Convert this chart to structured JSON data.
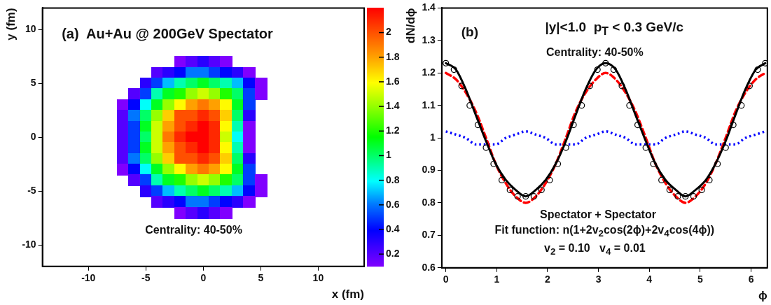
{
  "chart_data": [
    {
      "type": "heatmap",
      "xlabel": "x (fm)",
      "ylabel": "y (fm)",
      "annotations": [
        "(a)  Au+Au @ 200GeV Spectator",
        "Centrality: 40-50%"
      ],
      "x": [
        -7,
        -6,
        -5,
        -4,
        -3,
        -2,
        -1,
        0,
        1,
        2,
        3,
        4,
        5
      ],
      "y": [
        7,
        6,
        5,
        4,
        3,
        2,
        1,
        0,
        -1,
        -2,
        -3,
        -4,
        -5,
        -6,
        -7
      ],
      "cells": [
        [
          null,
          null,
          null,
          null,
          null,
          0.1,
          0.2,
          0.3,
          0.2,
          0.1,
          null,
          null,
          null
        ],
        [
          null,
          null,
          null,
          0.2,
          0.3,
          0.4,
          0.6,
          0.6,
          0.5,
          0.4,
          0.3,
          0.1,
          null
        ],
        [
          null,
          null,
          0.3,
          0.5,
          0.7,
          0.9,
          1.0,
          1.1,
          1.0,
          0.9,
          0.7,
          0.4,
          0.1
        ],
        [
          null,
          0.2,
          0.5,
          0.9,
          1.1,
          1.2,
          1.4,
          1.5,
          1.4,
          1.2,
          1.0,
          0.5,
          0.1
        ],
        [
          0.1,
          0.4,
          0.8,
          1.1,
          1.4,
          1.6,
          1.8,
          1.9,
          1.8,
          1.6,
          1.1,
          0.5,
          null
        ],
        [
          0.2,
          0.6,
          1.0,
          1.4,
          1.7,
          2.0,
          2.0,
          2.1,
          2.0,
          1.7,
          1.0,
          0.3,
          null
        ],
        [
          0.2,
          0.5,
          1.1,
          1.5,
          1.8,
          2.0,
          2.1,
          2.2,
          2.1,
          1.6,
          0.9,
          0.1,
          null
        ],
        [
          0.2,
          0.5,
          1.0,
          1.5,
          1.9,
          2.1,
          2.2,
          2.2,
          2.1,
          1.5,
          0.8,
          0.1,
          null
        ],
        [
          0.2,
          0.5,
          1.1,
          1.5,
          1.8,
          2.0,
          2.1,
          2.2,
          2.1,
          1.6,
          0.9,
          0.1,
          null
        ],
        [
          0.2,
          0.6,
          1.0,
          1.4,
          1.7,
          2.0,
          2.0,
          2.1,
          2.0,
          1.7,
          1.0,
          0.3,
          null
        ],
        [
          0.1,
          0.4,
          0.8,
          1.1,
          1.4,
          1.6,
          1.8,
          1.9,
          1.8,
          1.6,
          1.1,
          0.5,
          null
        ],
        [
          null,
          0.2,
          0.5,
          0.9,
          1.1,
          1.2,
          1.4,
          1.5,
          1.4,
          1.2,
          1.0,
          0.5,
          0.1
        ],
        [
          null,
          null,
          0.3,
          0.5,
          0.7,
          0.9,
          1.0,
          1.1,
          1.0,
          0.9,
          0.7,
          0.4,
          0.1
        ],
        [
          null,
          null,
          null,
          0.2,
          0.3,
          0.4,
          0.6,
          0.6,
          0.5,
          0.4,
          0.3,
          0.1,
          null
        ],
        [
          null,
          null,
          null,
          null,
          null,
          0.1,
          0.2,
          0.3,
          0.2,
          0.1,
          null,
          null,
          null
        ]
      ],
      "clim": [
        0.1,
        2.2
      ],
      "cticks": [
        0.2,
        0.4,
        0.6,
        0.8,
        1,
        1.2,
        1.4,
        1.6,
        1.8,
        2
      ],
      "xlim": [
        -14,
        14
      ],
      "ylim": [
        -12,
        12
      ],
      "xticks": [
        -10,
        -5,
        0,
        5,
        10
      ],
      "yticks": [
        -10,
        -5,
        0,
        5,
        10
      ]
    },
    {
      "type": "line",
      "title": "|y|<1.0  p$_{T}$ < 0.3 GeV/c",
      "xlabel": "ϕ",
      "ylabel": "dN/dϕ",
      "annotations": [
        "(b)",
        "Centrality: 40-50%",
        "Spectator + Spectator",
        "Fit function: n(1+2v$_{2}$cos(2ϕ)+2v$_{4}$cos(4ϕ))",
        "v$_{2}$ = 0.10   v$_{4}$ = 0.01"
      ],
      "xlim": [
        -0.08,
        6.32
      ],
      "ylim": [
        0.6,
        1.4
      ],
      "xticks": [
        0,
        1,
        2,
        3,
        4,
        5,
        6
      ],
      "yticks": [
        0.6,
        0.7,
        0.8,
        0.9,
        1,
        1.1,
        1.2,
        1.3,
        1.4
      ],
      "series": [
        {
          "type": "line",
          "color": "#0000ff",
          "line_style": "dotted",
          "x": [
            0,
            0.2,
            0.39,
            0.59,
            0.79,
            0.98,
            1.18,
            1.37,
            1.57,
            1.77,
            1.96,
            2.16,
            2.36,
            2.55,
            2.75,
            2.95,
            3.14,
            3.34,
            3.53,
            3.73,
            3.93,
            4.12,
            4.32,
            4.52,
            4.71,
            4.91,
            5.11,
            5.3,
            5.5,
            5.69,
            5.89,
            6.09,
            6.28
          ],
          "values": [
            1.02,
            1.01,
            1.0,
            0.98,
            0.98,
            0.98,
            1.0,
            1.01,
            1.02,
            1.01,
            1.0,
            0.98,
            0.98,
            0.98,
            1.0,
            1.01,
            1.02,
            1.01,
            1.0,
            0.98,
            0.98,
            0.98,
            1.0,
            1.01,
            1.02,
            1.01,
            1.0,
            0.98,
            0.98,
            0.98,
            1.0,
            1.01,
            1.02
          ]
        },
        {
          "type": "line",
          "color": "#ff0000",
          "line_style": "dashed",
          "x": [
            0,
            0.2,
            0.39,
            0.59,
            0.79,
            0.98,
            1.18,
            1.37,
            1.57,
            1.77,
            1.96,
            2.16,
            2.36,
            2.55,
            2.75,
            2.95,
            3.14,
            3.34,
            3.53,
            3.73,
            3.93,
            4.12,
            4.32,
            4.52,
            4.71,
            4.91,
            5.11,
            5.3,
            5.5,
            5.69,
            5.89,
            6.09,
            6.28
          ],
          "values": [
            1.2,
            1.18,
            1.14,
            1.08,
            1.0,
            0.92,
            0.86,
            0.82,
            0.8,
            0.82,
            0.86,
            0.92,
            1.0,
            1.08,
            1.14,
            1.18,
            1.2,
            1.18,
            1.14,
            1.08,
            1.0,
            0.92,
            0.86,
            0.82,
            0.8,
            0.82,
            0.86,
            0.92,
            1.0,
            1.08,
            1.14,
            1.18,
            1.2
          ]
        },
        {
          "type": "line",
          "color": "#000000",
          "line_style": "solid",
          "x": [
            0,
            0.2,
            0.39,
            0.59,
            0.79,
            0.98,
            1.18,
            1.37,
            1.57,
            1.77,
            1.96,
            2.16,
            2.36,
            2.55,
            2.75,
            2.95,
            3.14,
            3.34,
            3.53,
            3.73,
            3.93,
            4.12,
            4.32,
            4.52,
            4.71,
            4.91,
            5.11,
            5.3,
            5.5,
            5.69,
            5.89,
            6.09,
            6.28
          ],
          "values": [
            1.23,
            1.21,
            1.15,
            1.07,
            0.99,
            0.92,
            0.87,
            0.84,
            0.82,
            0.84,
            0.87,
            0.92,
            0.99,
            1.07,
            1.15,
            1.21,
            1.23,
            1.21,
            1.15,
            1.07,
            0.99,
            0.92,
            0.87,
            0.84,
            0.82,
            0.84,
            0.87,
            0.92,
            0.99,
            1.07,
            1.15,
            1.21,
            1.23
          ]
        },
        {
          "type": "scatter",
          "color": "#000000",
          "marker": "circle",
          "x": [
            0,
            0.16,
            0.31,
            0.47,
            0.63,
            0.79,
            0.94,
            1.1,
            1.26,
            1.41,
            1.57,
            1.73,
            1.88,
            2.04,
            2.2,
            2.36,
            2.51,
            2.67,
            2.83,
            2.98,
            3.14,
            3.3,
            3.46,
            3.61,
            3.77,
            3.93,
            4.08,
            4.24,
            4.4,
            4.56,
            4.71,
            4.87,
            5.03,
            5.18,
            5.34,
            5.5,
            5.65,
            5.81,
            5.97,
            6.13,
            6.28
          ],
          "values": [
            1.23,
            1.21,
            1.16,
            1.1,
            1.04,
            0.97,
            0.92,
            0.87,
            0.84,
            0.82,
            0.82,
            0.82,
            0.84,
            0.87,
            0.92,
            0.97,
            1.04,
            1.1,
            1.16,
            1.21,
            1.23,
            1.21,
            1.16,
            1.1,
            1.04,
            0.97,
            0.92,
            0.87,
            0.84,
            0.82,
            0.82,
            0.82,
            0.84,
            0.87,
            0.92,
            0.97,
            1.04,
            1.1,
            1.16,
            1.21,
            1.23
          ]
        }
      ]
    }
  ]
}
